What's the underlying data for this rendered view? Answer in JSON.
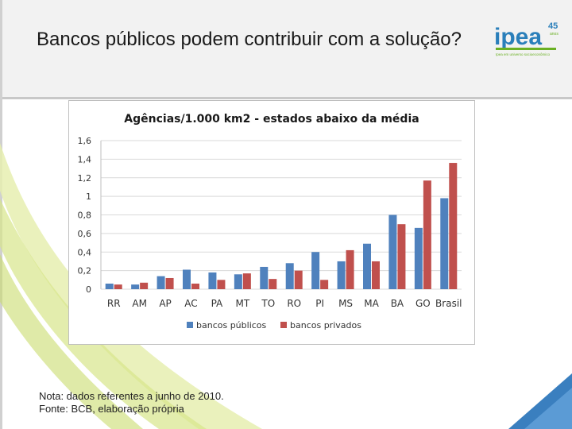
{
  "slide": {
    "title": "Bancos públicos podem contribuir com a solução?",
    "logo": {
      "name": "ipea",
      "badge_number": "45",
      "badge_sub": "anos",
      "tagline": "Ipea em universo socioeconômico"
    },
    "notes": [
      "Nota: dados referentes a junho de 2010.",
      "Fonte: BCB, elaboração própria"
    ]
  },
  "colors": {
    "public": "#4f81bd",
    "private": "#c0504d",
    "grid": "#d9d9d9",
    "logo_green": "#6ab023",
    "logo_blue": "#2a7fba"
  },
  "chart_data": {
    "type": "bar",
    "title": "Agências/1.000 km2 - estados abaixo da média",
    "categories": [
      "RR",
      "AM",
      "AP",
      "AC",
      "PA",
      "MT",
      "TO",
      "RO",
      "PI",
      "MS",
      "MA",
      "BA",
      "GO",
      "Brasil"
    ],
    "series": [
      {
        "name": "bancos públicos",
        "color": "#4f81bd",
        "values": [
          0.06,
          0.05,
          0.14,
          0.21,
          0.18,
          0.16,
          0.24,
          0.28,
          0.4,
          0.3,
          0.49,
          0.8,
          0.66,
          0.98
        ]
      },
      {
        "name": "bancos privados",
        "color": "#c0504d",
        "values": [
          0.05,
          0.07,
          0.12,
          0.06,
          0.1,
          0.17,
          0.11,
          0.2,
          0.1,
          0.42,
          0.3,
          0.7,
          1.17,
          1.36
        ]
      }
    ],
    "ylim": [
      0,
      1.6
    ],
    "yticks": [
      "0",
      "0,2",
      "0,4",
      "0,6",
      "0,8",
      "1",
      "1,2",
      "1,4",
      "1,6"
    ],
    "grid": true,
    "legend_position": "bottom"
  }
}
